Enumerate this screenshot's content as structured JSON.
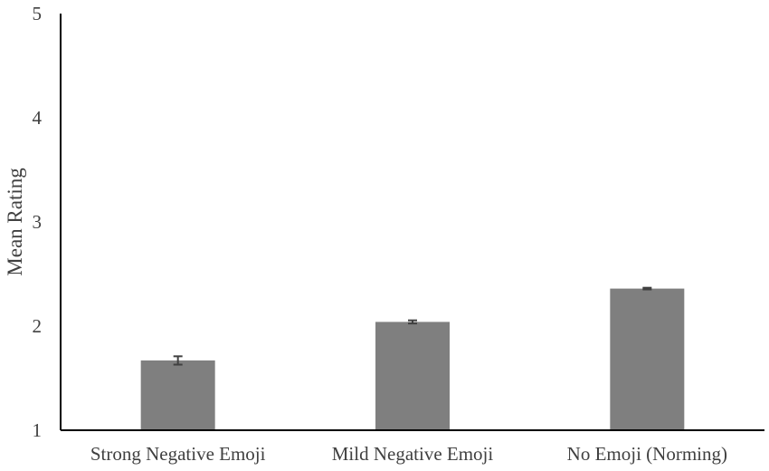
{
  "chart_data": {
    "type": "bar",
    "title": "",
    "xlabel": "",
    "ylabel": "Mean Rating",
    "ylim": [
      1,
      5
    ],
    "yticks": [
      1,
      2,
      3,
      4,
      5
    ],
    "grid": false,
    "legend": "none",
    "categories": [
      "Strong Negative Emoji",
      "Mild Negative Emoji",
      "No Emoji (Norming)"
    ],
    "values": [
      1.67,
      2.04,
      2.36
    ],
    "error": [
      0.04,
      0.015,
      0.008
    ],
    "colors": {
      "bar": "#7f7f7f",
      "axis": "#000000",
      "text": "#404040",
      "errorbar": "#404040"
    }
  }
}
